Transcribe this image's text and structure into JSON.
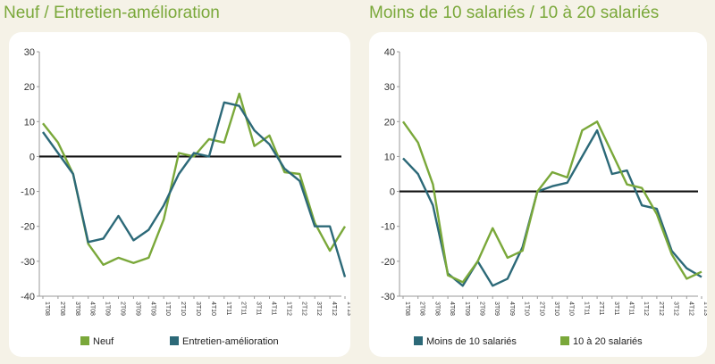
{
  "chart_data": [
    {
      "type": "line",
      "title": "Neuf / Entretien-amélioration",
      "x": [
        "1T08",
        "2T08",
        "3T08",
        "4T08",
        "1T09",
        "2T09",
        "3T09",
        "4T09",
        "1T10",
        "2T10",
        "3T10",
        "4T10",
        "1T11",
        "2T11",
        "3T11",
        "4T11",
        "1T12",
        "2T12",
        "3T12",
        "4T12",
        "1T13"
      ],
      "ylim": [
        -40,
        30
      ],
      "yticks": [
        -40,
        -30,
        -20,
        -10,
        0,
        10,
        20,
        30
      ],
      "legend_position": "bottom",
      "series": [
        {
          "name": "Neuf",
          "color": "#7aa83a",
          "values": [
            9.5,
            4,
            -5,
            -25,
            -31,
            -29,
            -30.5,
            -29,
            -18,
            1,
            0,
            5,
            4,
            18,
            3,
            6,
            -4.5,
            -5,
            -19,
            -27,
            -20
          ]
        },
        {
          "name": "Entretien-amélioration",
          "color": "#2c6978",
          "values": [
            7,
            1,
            -5,
            -24.5,
            -23.5,
            -17,
            -24,
            -21,
            -14,
            -5,
            1,
            0,
            15.5,
            14.5,
            7.5,
            3.5,
            -3.5,
            -7,
            -20,
            -20,
            -34.5
          ]
        }
      ]
    },
    {
      "type": "line",
      "title": "Moins de 10 salariés / 10 à 20 salariés",
      "x": [
        "1T08",
        "2T08",
        "3T08",
        "4T08",
        "1T09",
        "2T09",
        "3T09",
        "4T09",
        "1T10",
        "2T10",
        "3T10",
        "4T10",
        "1T11",
        "2T11",
        "3T11",
        "4T11",
        "1T12",
        "2T12",
        "3T12",
        "4T12",
        "1T13"
      ],
      "ylim": [
        -30,
        40
      ],
      "yticks": [
        -30,
        -20,
        -10,
        0,
        10,
        20,
        30,
        40
      ],
      "legend_position": "bottom",
      "series": [
        {
          "name": "Moins de 10 salariés",
          "color": "#2c6978",
          "values": [
            9.5,
            5,
            -4,
            -23.5,
            -27,
            -20,
            -27,
            -25,
            -16,
            0,
            1.5,
            2.5,
            10,
            17.5,
            5,
            6,
            -4,
            -5,
            -17,
            -22,
            -24.5
          ]
        },
        {
          "name": "10 à 20 salariés",
          "color": "#7aa83a",
          "values": [
            20,
            14,
            2,
            -24,
            -26,
            -20,
            -10.5,
            -19,
            -17,
            0,
            5.5,
            4,
            17.5,
            20,
            11,
            2,
            1,
            -6.5,
            -18,
            -25,
            -23
          ]
        }
      ]
    }
  ]
}
